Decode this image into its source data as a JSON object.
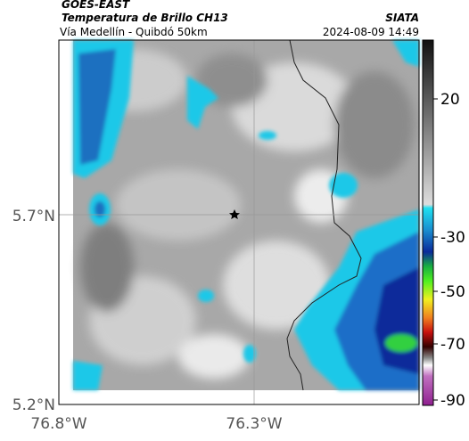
{
  "header": {
    "title": "GOES-EAST",
    "subtitle": "Temperatura de Brillo CH13",
    "org": "SIATA",
    "route": "Vía Medellín - Quibdó 50km",
    "datetime": "2024-08-09 14:49"
  },
  "axes": {
    "lat_labels": [
      "5.7°N",
      "5.2°N"
    ],
    "lon_labels": [
      "76.8°W",
      "76.3°W"
    ]
  },
  "colorbar": {
    "ticks": [
      20,
      -30,
      -50,
      -70,
      -90
    ]
  }
}
